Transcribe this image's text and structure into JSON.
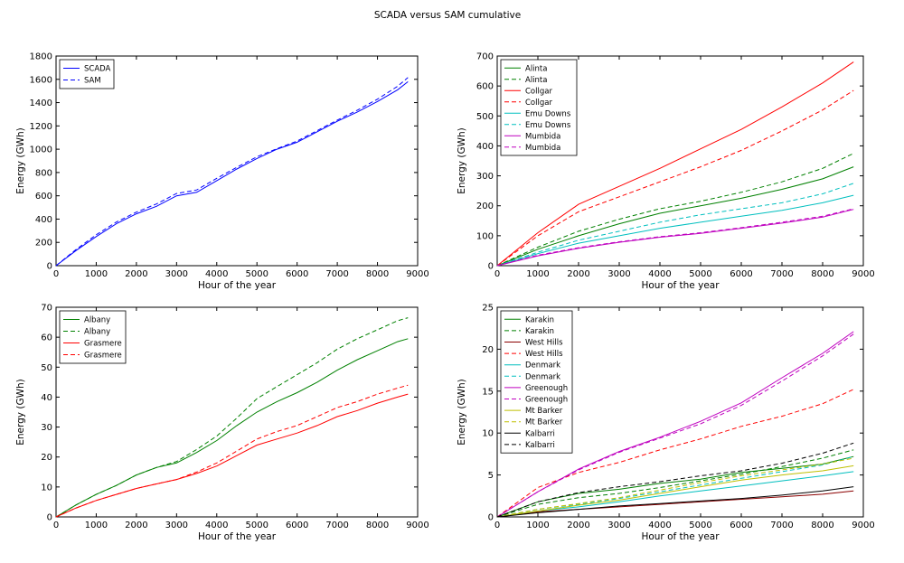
{
  "figure": {
    "title": "SCADA versus SAM cumulative"
  },
  "colors": {
    "blue": "#0000ff",
    "green": "#008000",
    "red": "#ff0000",
    "cyan": "#00bfbf",
    "magenta": "#bf00bf",
    "darkred": "#8b0000",
    "olive": "#bfbf00",
    "black": "#000000"
  },
  "chart_data": [
    {
      "type": "line",
      "xlabel": "Hour of the year",
      "ylabel": "Energy (GWh)",
      "xlim": [
        0,
        9000
      ],
      "ylim": [
        0,
        1800
      ],
      "xticks": [
        0,
        1000,
        2000,
        3000,
        4000,
        5000,
        6000,
        7000,
        8000,
        9000
      ],
      "yticks": [
        0,
        200,
        400,
        600,
        800,
        1000,
        1200,
        1400,
        1600,
        1800
      ],
      "legend_position": "top-left",
      "series": [
        {
          "name": "SCADA",
          "color": "#0000ff",
          "dash": "solid",
          "x": [
            0,
            500,
            1000,
            1500,
            2000,
            2500,
            3000,
            3500,
            4000,
            4500,
            5000,
            5500,
            6000,
            6500,
            7000,
            7500,
            8000,
            8500,
            8760
          ],
          "y": [
            0,
            130,
            250,
            360,
            445,
            510,
            600,
            630,
            730,
            830,
            920,
            1000,
            1060,
            1150,
            1240,
            1320,
            1410,
            1510,
            1580
          ]
        },
        {
          "name": "SAM",
          "color": "#0000ff",
          "dash": "dashed",
          "x": [
            0,
            500,
            1000,
            1500,
            2000,
            2500,
            3000,
            3500,
            4000,
            4500,
            5000,
            5500,
            6000,
            6500,
            7000,
            7500,
            8000,
            8500,
            8760
          ],
          "y": [
            0,
            140,
            265,
            375,
            460,
            530,
            620,
            650,
            750,
            845,
            935,
            1005,
            1070,
            1160,
            1250,
            1335,
            1430,
            1540,
            1615
          ]
        }
      ]
    },
    {
      "type": "line",
      "xlabel": "Hour of the year",
      "ylabel": "Energy (GWh)",
      "xlim": [
        0,
        9000
      ],
      "ylim": [
        0,
        700
      ],
      "xticks": [
        0,
        1000,
        2000,
        3000,
        4000,
        5000,
        6000,
        7000,
        8000,
        9000
      ],
      "yticks": [
        0,
        100,
        200,
        300,
        400,
        500,
        600,
        700
      ],
      "legend_position": "top-left",
      "series": [
        {
          "name": "Alinta",
          "color": "#008000",
          "dash": "solid",
          "x": [
            0,
            1000,
            2000,
            3000,
            4000,
            5000,
            6000,
            7000,
            8000,
            8760
          ],
          "y": [
            0,
            55,
            100,
            140,
            175,
            200,
            225,
            255,
            290,
            330
          ]
        },
        {
          "name": "Alinta",
          "color": "#008000",
          "dash": "dashed",
          "x": [
            0,
            1000,
            2000,
            3000,
            4000,
            5000,
            6000,
            7000,
            8000,
            8760
          ],
          "y": [
            0,
            62,
            115,
            155,
            190,
            215,
            245,
            280,
            325,
            375
          ]
        },
        {
          "name": "Collgar",
          "color": "#ff0000",
          "dash": "solid",
          "x": [
            0,
            1000,
            2000,
            3000,
            4000,
            5000,
            6000,
            7000,
            8000,
            8760
          ],
          "y": [
            0,
            110,
            205,
            265,
            325,
            390,
            455,
            530,
            610,
            680
          ]
        },
        {
          "name": "Collgar",
          "color": "#ff0000",
          "dash": "dashed",
          "x": [
            0,
            1000,
            2000,
            3000,
            4000,
            5000,
            6000,
            7000,
            8000,
            8760
          ],
          "y": [
            0,
            100,
            180,
            230,
            280,
            330,
            385,
            450,
            520,
            585
          ]
        },
        {
          "name": "Emu Downs",
          "color": "#00bfbf",
          "dash": "solid",
          "x": [
            0,
            1000,
            2000,
            3000,
            4000,
            5000,
            6000,
            7000,
            8000,
            8760
          ],
          "y": [
            0,
            40,
            75,
            100,
            125,
            145,
            165,
            185,
            210,
            235
          ]
        },
        {
          "name": "Emu Downs",
          "color": "#00bfbf",
          "dash": "dashed",
          "x": [
            0,
            1000,
            2000,
            3000,
            4000,
            5000,
            6000,
            7000,
            8000,
            8760
          ],
          "y": [
            0,
            45,
            85,
            115,
            145,
            170,
            190,
            210,
            240,
            275
          ]
        },
        {
          "name": "Mumbida",
          "color": "#bf00bf",
          "dash": "solid",
          "x": [
            0,
            1000,
            2000,
            3000,
            4000,
            5000,
            6000,
            7000,
            8000,
            8760
          ],
          "y": [
            0,
            33,
            58,
            78,
            95,
            108,
            125,
            142,
            162,
            188
          ]
        },
        {
          "name": "Mumbida",
          "color": "#bf00bf",
          "dash": "dashed",
          "x": [
            0,
            1000,
            2000,
            3000,
            4000,
            5000,
            6000,
            7000,
            8000,
            8760
          ],
          "y": [
            0,
            35,
            60,
            80,
            97,
            110,
            127,
            145,
            165,
            190
          ]
        }
      ]
    },
    {
      "type": "line",
      "xlabel": "Hour of the year",
      "ylabel": "Energy (GWh)",
      "xlim": [
        0,
        9000
      ],
      "ylim": [
        0,
        70
      ],
      "xticks": [
        0,
        1000,
        2000,
        3000,
        4000,
        5000,
        6000,
        7000,
        8000,
        9000
      ],
      "yticks": [
        0,
        10,
        20,
        30,
        40,
        50,
        60,
        70
      ],
      "legend_position": "top-left",
      "series": [
        {
          "name": "Albany",
          "color": "#008000",
          "dash": "solid",
          "x": [
            0,
            500,
            1000,
            1500,
            2000,
            2500,
            3000,
            3500,
            4000,
            4500,
            5000,
            5500,
            6000,
            6500,
            7000,
            7500,
            8000,
            8500,
            8760
          ],
          "y": [
            0,
            4,
            7.5,
            10.5,
            14,
            16.5,
            18,
            21.5,
            25.5,
            30.5,
            35,
            38.5,
            41.5,
            45,
            49,
            52.5,
            55.5,
            58.5,
            59.5
          ]
        },
        {
          "name": "Albany",
          "color": "#008000",
          "dash": "dashed",
          "x": [
            0,
            500,
            1000,
            1500,
            2000,
            2500,
            3000,
            3500,
            4000,
            4500,
            5000,
            5500,
            6000,
            6500,
            7000,
            7500,
            8000,
            8500,
            8760
          ],
          "y": [
            0,
            4,
            7.5,
            10.5,
            14,
            16.5,
            18.5,
            22.5,
            27,
            33,
            39.5,
            43.5,
            47.5,
            51.5,
            56,
            59.5,
            62.5,
            65.5,
            66.5
          ]
        },
        {
          "name": "Grasmere",
          "color": "#ff0000",
          "dash": "solid",
          "x": [
            0,
            500,
            1000,
            1500,
            2000,
            2500,
            3000,
            3500,
            4000,
            4500,
            5000,
            5500,
            6000,
            6500,
            7000,
            7500,
            8000,
            8500,
            8760
          ],
          "y": [
            0,
            3,
            5.5,
            7.5,
            9.5,
            11,
            12.5,
            14.5,
            17,
            20.5,
            24,
            26,
            28,
            30.5,
            33.5,
            35.5,
            38,
            40,
            41
          ]
        },
        {
          "name": "Grasmere",
          "color": "#ff0000",
          "dash": "dashed",
          "x": [
            0,
            500,
            1000,
            1500,
            2000,
            2500,
            3000,
            3500,
            4000,
            4500,
            5000,
            5500,
            6000,
            6500,
            7000,
            7500,
            8000,
            8500,
            8760
          ],
          "y": [
            0,
            3,
            5.5,
            7.5,
            9.5,
            11,
            12.5,
            15,
            18,
            22,
            26,
            28.5,
            30.5,
            33.5,
            36.5,
            38.5,
            41,
            43,
            44
          ]
        }
      ]
    },
    {
      "type": "line",
      "xlabel": "Hour of the year",
      "ylabel": "Energy (GWh)",
      "xlim": [
        0,
        9000
      ],
      "ylim": [
        0,
        25
      ],
      "xticks": [
        0,
        1000,
        2000,
        3000,
        4000,
        5000,
        6000,
        7000,
        8000,
        9000
      ],
      "yticks": [
        0,
        5,
        10,
        15,
        20,
        25
      ],
      "legend_position": "top-left",
      "series": [
        {
          "name": "Karakin",
          "color": "#008000",
          "dash": "solid",
          "x": [
            0,
            1000,
            2000,
            3000,
            4000,
            5000,
            6000,
            7000,
            8000,
            8760
          ],
          "y": [
            0,
            1.8,
            2.8,
            3.3,
            4,
            4.5,
            5.3,
            5.8,
            6.3,
            7.2
          ]
        },
        {
          "name": "Karakin",
          "color": "#008000",
          "dash": "dashed",
          "x": [
            0,
            1000,
            2000,
            3000,
            4000,
            5000,
            6000,
            7000,
            8000,
            8760
          ],
          "y": [
            0,
            1.5,
            2.3,
            2.8,
            3.5,
            4.3,
            5.1,
            6,
            7,
            8
          ]
        },
        {
          "name": "West Hills",
          "color": "#8b0000",
          "dash": "solid",
          "x": [
            0,
            1000,
            2000,
            3000,
            4000,
            5000,
            6000,
            7000,
            8000,
            8760
          ],
          "y": [
            0,
            0.6,
            0.9,
            1.2,
            1.5,
            1.8,
            2.1,
            2.4,
            2.7,
            3.1
          ]
        },
        {
          "name": "West Hills",
          "color": "#ff0000",
          "dash": "dashed",
          "x": [
            0,
            1000,
            2000,
            3000,
            4000,
            5000,
            6000,
            7000,
            8000,
            8760
          ],
          "y": [
            0,
            3.5,
            5.3,
            6.5,
            8,
            9.3,
            10.8,
            12,
            13.5,
            15.2
          ]
        },
        {
          "name": "Denmark",
          "color": "#00bfbf",
          "dash": "solid",
          "x": [
            0,
            1000,
            2000,
            3000,
            4000,
            5000,
            6000,
            7000,
            8000,
            8760
          ],
          "y": [
            0,
            0.7,
            1.2,
            1.8,
            2.5,
            3.1,
            3.7,
            4.3,
            4.9,
            5.4
          ]
        },
        {
          "name": "Denmark",
          "color": "#00bfbf",
          "dash": "dashed",
          "x": [
            0,
            1000,
            2000,
            3000,
            4000,
            5000,
            6000,
            7000,
            8000,
            8760
          ],
          "y": [
            0,
            0.9,
            1.5,
            2.2,
            3,
            3.8,
            4.6,
            5.4,
            6.2,
            7.2
          ]
        },
        {
          "name": "Greenough",
          "color": "#bf00bf",
          "dash": "solid",
          "x": [
            0,
            1000,
            2000,
            3000,
            4000,
            5000,
            6000,
            7000,
            8000,
            8760
          ],
          "y": [
            0,
            3,
            5.7,
            7.8,
            9.5,
            11.4,
            13.6,
            16.6,
            19.5,
            22.1
          ]
        },
        {
          "name": "Greenough",
          "color": "#bf00bf",
          "dash": "dashed",
          "x": [
            0,
            1000,
            2000,
            3000,
            4000,
            5000,
            6000,
            7000,
            8000,
            8760
          ],
          "y": [
            0,
            3,
            5.6,
            7.7,
            9.4,
            11.1,
            13.3,
            16.2,
            19.2,
            21.8
          ]
        },
        {
          "name": "Mt Barker",
          "color": "#bfbf00",
          "dash": "solid",
          "x": [
            0,
            1000,
            2000,
            3000,
            4000,
            5000,
            6000,
            7000,
            8000,
            8760
          ],
          "y": [
            0,
            0.7,
            1.4,
            2,
            2.8,
            3.6,
            4.4,
            5,
            5.5,
            6.1
          ]
        },
        {
          "name": "Mt Barker",
          "color": "#bfbf00",
          "dash": "dashed",
          "x": [
            0,
            1000,
            2000,
            3000,
            4000,
            5000,
            6000,
            7000,
            8000,
            8760
          ],
          "y": [
            0,
            0.9,
            1.6,
            2.3,
            3.2,
            4.1,
            4.9,
            5.6,
            6.3,
            7
          ]
        },
        {
          "name": "Kalbarri",
          "color": "#000000",
          "dash": "solid",
          "x": [
            0,
            1000,
            2000,
            3000,
            4000,
            5000,
            6000,
            7000,
            8000,
            8760
          ],
          "y": [
            0,
            0.5,
            0.9,
            1.3,
            1.6,
            1.9,
            2.2,
            2.6,
            3.1,
            3.6
          ]
        },
        {
          "name": "Kalbarri",
          "color": "#000000",
          "dash": "dashed",
          "x": [
            0,
            1000,
            2000,
            3000,
            4000,
            5000,
            6000,
            7000,
            8000,
            8760
          ],
          "y": [
            0,
            1.8,
            2.9,
            3.6,
            4.2,
            4.9,
            5.5,
            6.4,
            7.6,
            8.8
          ]
        }
      ]
    }
  ]
}
